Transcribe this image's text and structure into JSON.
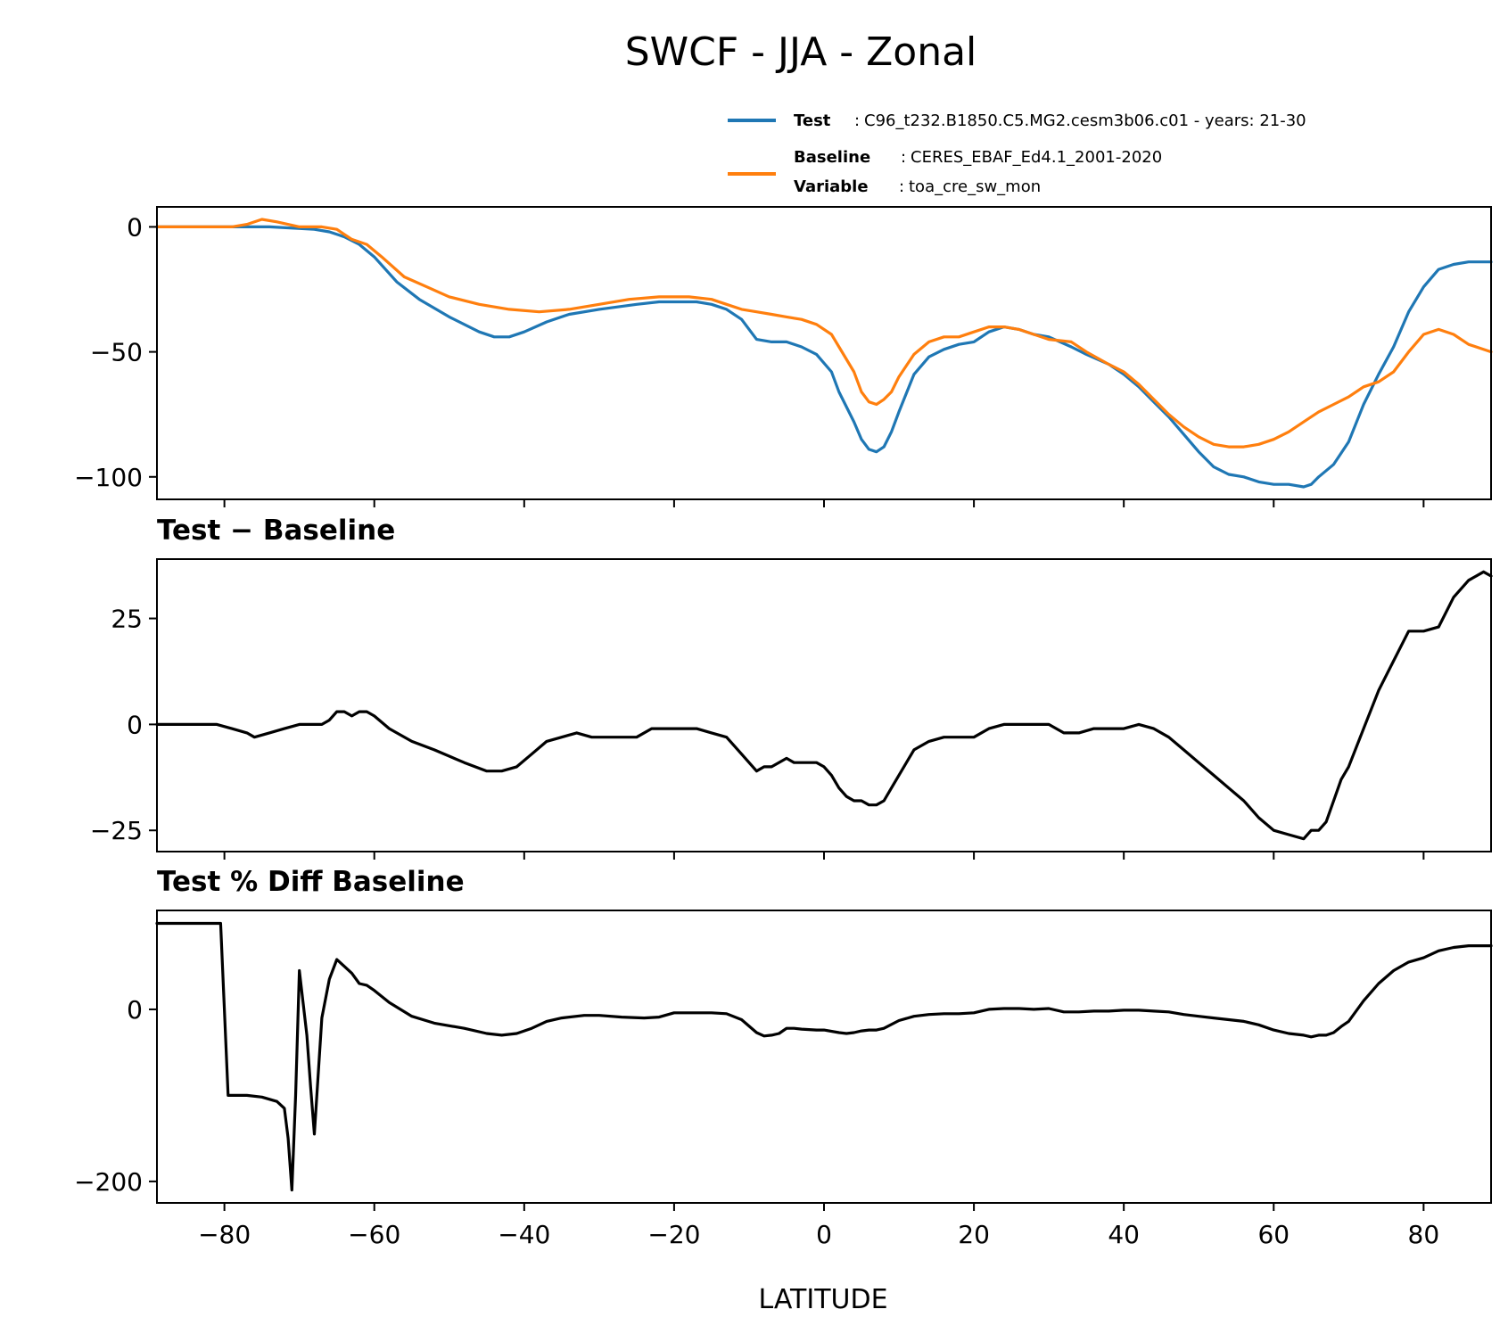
{
  "figure": {
    "title": "SWCF - JJA - Zonal",
    "xlabel": "LATITUDE"
  },
  "legend": {
    "test_key": "Test",
    "test_value": "C96_t232.B1850.C5.MG2.cesm3b06.c01 - years: 21-30",
    "baseline_key": "Baseline",
    "baseline_value": "CERES_EBAF_Ed4.1_2001-2020",
    "variable_key": "Variable",
    "variable_value": "toa_cre_sw_mon",
    "colors": {
      "test": "#1f77b4",
      "baseline": "#ff7f0e"
    }
  },
  "chart_data": [
    {
      "type": "line",
      "title": "",
      "xlabel": "",
      "ylabel": "",
      "xlim": [
        -89,
        89
      ],
      "ylim": [
        -109,
        8
      ],
      "xticks": [
        -80,
        -60,
        -40,
        -20,
        0,
        20,
        40,
        60,
        80
      ],
      "yticks": [
        -100,
        -50,
        0
      ],
      "ytick_labels": [
        "−100",
        "−50",
        "0"
      ],
      "series": [
        {
          "name": "Test",
          "color": "#1f77b4",
          "x": [
            -89,
            -80,
            -74,
            -68,
            -66,
            -64,
            -62,
            -60,
            -57,
            -54,
            -50,
            -46,
            -44,
            -42,
            -40,
            -37,
            -34,
            -30,
            -25,
            -22,
            -20,
            -17,
            -15,
            -13,
            -11,
            -9,
            -7,
            -5,
            -3,
            -1,
            1,
            2,
            4,
            5,
            6,
            7,
            8,
            9,
            10,
            12,
            14,
            16,
            18,
            20,
            22,
            24,
            26,
            28,
            30,
            33,
            35,
            38,
            40,
            42,
            44,
            46,
            48,
            50,
            52,
            54,
            56,
            58,
            60,
            62,
            64,
            65,
            66,
            68,
            70,
            72,
            74,
            76,
            78,
            80,
            82,
            84,
            86,
            89
          ],
          "y": [
            0,
            0,
            0,
            -1,
            -2,
            -4,
            -7,
            -12,
            -22,
            -29,
            -36,
            -42,
            -44,
            -44,
            -42,
            -38,
            -35,
            -33,
            -31,
            -30,
            -30,
            -30,
            -31,
            -33,
            -37,
            -45,
            -46,
            -46,
            -48,
            -51,
            -58,
            -66,
            -78,
            -85,
            -89,
            -90,
            -88,
            -82,
            -74,
            -59,
            -52,
            -49,
            -47,
            -46,
            -42,
            -40,
            -41,
            -43,
            -44,
            -48,
            -51,
            -55,
            -59,
            -64,
            -70,
            -76,
            -83,
            -90,
            -96,
            -99,
            -100,
            -102,
            -103,
            -103,
            -104,
            -103,
            -100,
            -95,
            -86,
            -71,
            -59,
            -48,
            -34,
            -24,
            -17,
            -15,
            -14,
            -14
          ]
        },
        {
          "name": "Baseline",
          "color": "#ff7f0e",
          "x": [
            -89,
            -82,
            -79,
            -77,
            -75,
            -73,
            -70,
            -67,
            -65,
            -63,
            -61,
            -59,
            -56,
            -53,
            -50,
            -46,
            -42,
            -38,
            -34,
            -30,
            -26,
            -22,
            -18,
            -15,
            -13,
            -11,
            -9,
            -7,
            -5,
            -3,
            -1,
            1,
            2,
            4,
            5,
            6,
            7,
            8,
            9,
            10,
            12,
            14,
            16,
            18,
            20,
            22,
            24,
            26,
            28,
            30,
            33,
            35,
            38,
            40,
            42,
            44,
            46,
            48,
            50,
            52,
            54,
            56,
            58,
            60,
            62,
            64,
            66,
            68,
            70,
            72,
            74,
            76,
            78,
            80,
            82,
            84,
            86,
            89
          ],
          "y": [
            0,
            0,
            0,
            1,
            3,
            2,
            0,
            0,
            -1,
            -5,
            -7,
            -12,
            -20,
            -24,
            -28,
            -31,
            -33,
            -34,
            -33,
            -31,
            -29,
            -28,
            -28,
            -29,
            -31,
            -33,
            -34,
            -35,
            -36,
            -37,
            -39,
            -43,
            -48,
            -58,
            -66,
            -70,
            -71,
            -69,
            -66,
            -60,
            -51,
            -46,
            -44,
            -44,
            -42,
            -40,
            -40,
            -41,
            -43,
            -45,
            -46,
            -50,
            -55,
            -58,
            -63,
            -69,
            -75,
            -80,
            -84,
            -87,
            -88,
            -88,
            -87,
            -85,
            -82,
            -78,
            -74,
            -71,
            -68,
            -64,
            -62,
            -58,
            -50,
            -43,
            -41,
            -43,
            -47,
            -50
          ]
        }
      ]
    },
    {
      "type": "line",
      "title": "Test − Baseline",
      "xlabel": "",
      "ylabel": "",
      "xlim": [
        -89,
        89
      ],
      "ylim": [
        -30,
        39
      ],
      "xticks": [
        -80,
        -60,
        -40,
        -20,
        0,
        20,
        40,
        60,
        80
      ],
      "yticks": [
        -25,
        0,
        25
      ],
      "ytick_labels": [
        "−25",
        "0",
        "25"
      ],
      "series": [
        {
          "name": "",
          "color": "#000000",
          "x": [
            -89,
            -81,
            -79,
            -77,
            -76,
            -74,
            -72,
            -70,
            -68,
            -67,
            -66,
            -65,
            -64,
            -63,
            -62,
            -61,
            -60,
            -58,
            -55,
            -52,
            -48,
            -45,
            -43,
            -41,
            -39,
            -37,
            -35,
            -33,
            -31,
            -29,
            -27,
            -25,
            -23,
            -21,
            -19,
            -17,
            -15,
            -13,
            -11,
            -9,
            -8,
            -7,
            -5,
            -4,
            -3,
            -1,
            0,
            1,
            2,
            3,
            4,
            5,
            6,
            7,
            8,
            9,
            10,
            12,
            14,
            16,
            18,
            20,
            22,
            24,
            26,
            28,
            30,
            32,
            34,
            36,
            38,
            40,
            42,
            44,
            46,
            48,
            50,
            52,
            54,
            56,
            58,
            60,
            62,
            64,
            65,
            66,
            67,
            68,
            69,
            70,
            72,
            74,
            76,
            78,
            80,
            82,
            84,
            86,
            88,
            89
          ],
          "y": [
            0,
            0,
            -1,
            -2,
            -3,
            -2,
            -1,
            0,
            0,
            0,
            1,
            3,
            3,
            2,
            3,
            3,
            2,
            -1,
            -4,
            -6,
            -9,
            -11,
            -11,
            -10,
            -7,
            -4,
            -3,
            -2,
            -3,
            -3,
            -3,
            -3,
            -1,
            -1,
            -1,
            -1,
            -2,
            -3,
            -7,
            -11,
            -10,
            -10,
            -8,
            -9,
            -9,
            -9,
            -10,
            -12,
            -15,
            -17,
            -18,
            -18,
            -19,
            -19,
            -18,
            -15,
            -12,
            -6,
            -4,
            -3,
            -3,
            -3,
            -1,
            0,
            0,
            0,
            0,
            -2,
            -2,
            -1,
            -1,
            -1,
            0,
            -1,
            -3,
            -6,
            -9,
            -12,
            -15,
            -18,
            -22,
            -25,
            -26,
            -27,
            -25,
            -25,
            -23,
            -18,
            -13,
            -10,
            -1,
            8,
            15,
            22,
            22,
            23,
            30,
            34,
            36,
            35
          ]
        }
      ]
    },
    {
      "type": "line",
      "title": "Test % Diff Baseline",
      "xlabel": "LATITUDE",
      "ylabel": "",
      "xlim": [
        -89,
        89
      ],
      "ylim": [
        -225,
        115
      ],
      "xticks": [
        -80,
        -60,
        -40,
        -20,
        0,
        20,
        40,
        60,
        80
      ],
      "xtick_labels": [
        "−80",
        "−60",
        "−40",
        "−20",
        "0",
        "20",
        "40",
        "60",
        "80"
      ],
      "yticks": [
        -200,
        0
      ],
      "ytick_labels": [
        "−200",
        "0"
      ],
      "series": [
        {
          "name": "",
          "color": "#000000",
          "x": [
            -89,
            -80.5,
            -79.5,
            -77,
            -75,
            -73,
            -72,
            -71.5,
            -71,
            -70.5,
            -70,
            -69,
            -68.5,
            -68,
            -67,
            -66,
            -65,
            -64,
            -63,
            -62,
            -61,
            -60,
            -58,
            -55,
            -52,
            -48,
            -45,
            -43,
            -41,
            -39,
            -37,
            -35,
            -32,
            -30,
            -27,
            -24,
            -22,
            -20,
            -17,
            -15,
            -13,
            -11,
            -9,
            -8,
            -7,
            -6,
            -5,
            -4,
            -3,
            -1,
            0,
            2,
            3,
            4,
            5,
            6,
            7,
            8,
            10,
            12,
            14,
            16,
            18,
            20,
            22,
            24,
            26,
            28,
            30,
            32,
            34,
            36,
            38,
            40,
            42,
            44,
            46,
            48,
            50,
            52,
            54,
            56,
            58,
            60,
            62,
            64,
            65,
            66,
            67,
            68,
            69,
            70,
            72,
            74,
            76,
            78,
            80,
            82,
            84,
            86,
            89
          ],
          "y": [
            100,
            100,
            -100,
            -100,
            -102,
            -107,
            -115,
            -150,
            -210,
            -100,
            45,
            -30,
            -90,
            -145,
            -10,
            35,
            58,
            50,
            42,
            30,
            28,
            22,
            8,
            -8,
            -16,
            -22,
            -28,
            -30,
            -28,
            -22,
            -14,
            -10,
            -7,
            -7,
            -9,
            -10,
            -9,
            -4,
            -4,
            -4,
            -5,
            -12,
            -27,
            -31,
            -30,
            -28,
            -22,
            -22,
            -23,
            -24,
            -24,
            -27,
            -28,
            -27,
            -25,
            -24,
            -24,
            -22,
            -13,
            -8,
            -6,
            -5,
            -5,
            -4,
            0,
            1,
            1,
            0,
            1,
            -3,
            -3,
            -2,
            -2,
            -1,
            -1,
            -2,
            -3,
            -6,
            -8,
            -10,
            -12,
            -14,
            -18,
            -24,
            -28,
            -30,
            -32,
            -30,
            -30,
            -27,
            -20,
            -14,
            10,
            30,
            45,
            55,
            60,
            68,
            72,
            74,
            74
          ]
        }
      ]
    }
  ]
}
